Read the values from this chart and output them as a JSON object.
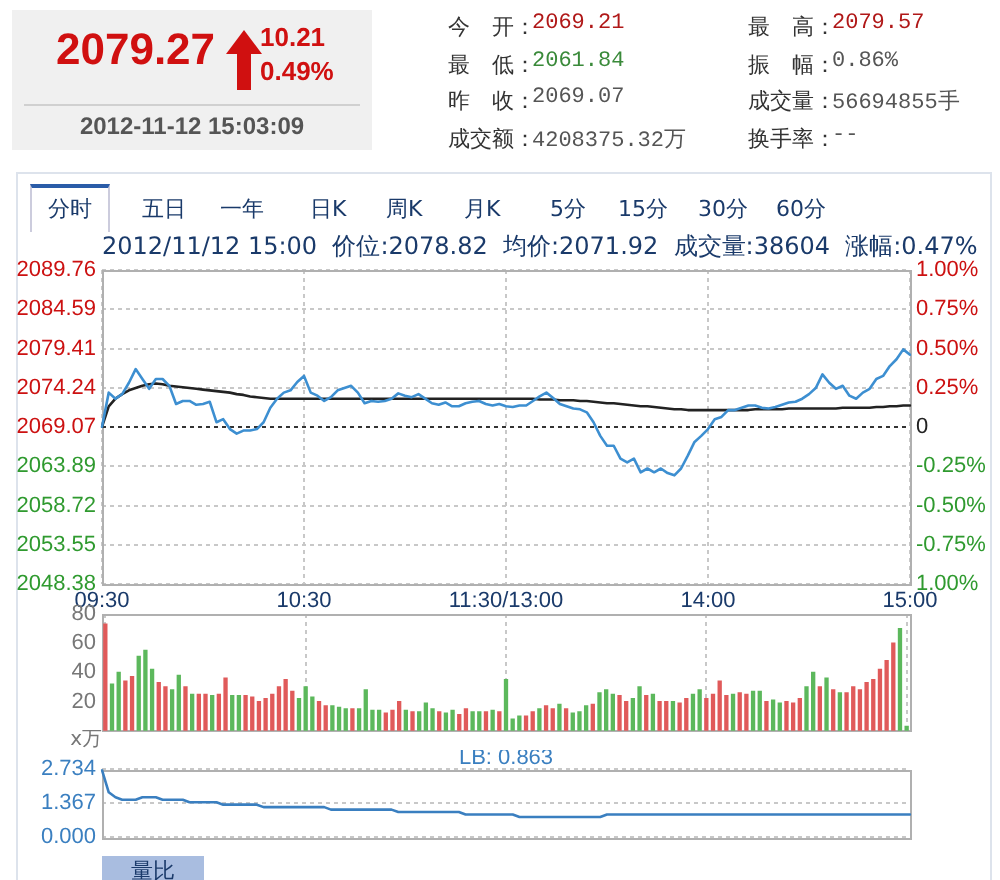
{
  "chart_data": [
    {
      "type": "other",
      "annotations": [
        "2079.27",
        "10.21",
        "0.49%",
        "2012-11-12 15:03:09",
        "今　开：",
        "2069.21",
        "最　高：",
        "2079.57",
        "最　低：",
        "2061.84",
        "振　幅：",
        "0.86%",
        "昨　收：",
        "2069.07",
        "成交量：",
        "56694855手",
        "成交额：",
        "4208375.32万",
        "换手率：",
        "--",
        "分时",
        "五日",
        "一年",
        "日K",
        "周K",
        "月K",
        "5分",
        "15分",
        "30分",
        "60分"
      ]
    },
    {
      "type": "line",
      "title": "2012/11/12 15:00  价位:2078.82  均价:2071.92  成交量:38604  涨幅:0.47%",
      "categories": [
        "09:30",
        null,
        null,
        null,
        null,
        null,
        null,
        null,
        null,
        null,
        null,
        null,
        null,
        null,
        null,
        null,
        null,
        null,
        null,
        null,
        null,
        null,
        null,
        null,
        null,
        null,
        null,
        null,
        null,
        null,
        "10:30",
        null,
        null,
        null,
        null,
        null,
        null,
        null,
        null,
        null,
        null,
        null,
        null,
        null,
        null,
        null,
        null,
        null,
        null,
        null,
        null,
        null,
        null,
        null,
        null,
        null,
        null,
        null,
        null,
        null,
        "11:30/13:00",
        null,
        null,
        null,
        null,
        null,
        null,
        null,
        null,
        null,
        null,
        null,
        null,
        null,
        null,
        null,
        null,
        null,
        null,
        null,
        null,
        null,
        null,
        null,
        null,
        null,
        null,
        null,
        null,
        null,
        "14:00",
        null,
        null,
        null,
        null,
        null,
        null,
        null,
        null,
        null,
        null,
        null,
        null,
        null,
        null,
        null,
        null,
        null,
        null,
        null,
        null,
        null,
        null,
        null,
        null,
        null,
        null,
        null,
        null,
        null,
        "15:00"
      ],
      "ylim": [
        2048.38,
        2089.76
      ],
      "yticks": [
        2048.38,
        2053.55,
        2058.72,
        2063.89,
        2069.07,
        2074.24,
        2079.41,
        2084.59,
        2089.76
      ],
      "y2lim": [
        -1,
        1
      ],
      "y2ticks": [
        {
          "value": -1,
          "label": "1.00%"
        },
        {
          "value": -0.75,
          "label": "-0.75%"
        },
        {
          "value": -0.5,
          "label": "-0.50%"
        },
        {
          "value": -0.25,
          "label": "-0.25%"
        },
        0,
        {
          "value": 0.25,
          "label": "0.25%"
        },
        {
          "value": 0.5,
          "label": "0.50%"
        },
        {
          "value": 0.75,
          "label": "0.75%"
        },
        {
          "value": 1,
          "label": "1.00%"
        }
      ],
      "grid": true,
      "marker": "none",
      "ref_lines": [
        {
          "axis": "y",
          "value": 2069.07,
          "line_style": "dotted",
          "color": "#333333"
        }
      ],
      "series": [
        {
          "color": "#3d8fd1",
          "values": [
            2069.1,
            2073.6,
            2072.8,
            2073.4,
            2074.9,
            2076.7,
            2075.4,
            2074.1,
            2075.4,
            2075.4,
            2074.5,
            2072.1,
            2072.5,
            2072.5,
            2072.0,
            2072.1,
            2072.4,
            2069.7,
            2070.1,
            2068.8,
            2068.2,
            2068.6,
            2068.6,
            2068.8,
            2069.7,
            2071.6,
            2072.8,
            2073.6,
            2073.9,
            2075.0,
            2075.8,
            2073.6,
            2073.2,
            2072.5,
            2073.0,
            2073.9,
            2074.2,
            2074.5,
            2073.6,
            2072.2,
            2072.5,
            2072.4,
            2072.5,
            2072.8,
            2073.5,
            2073.2,
            2073.0,
            2073.4,
            2072.8,
            2072.2,
            2072.0,
            2072.3,
            2071.8,
            2071.8,
            2072.2,
            2072.4,
            2072.5,
            2072.1,
            2071.9,
            2072.1,
            2071.8,
            2071.7,
            2071.9,
            2071.9,
            2072.5,
            2073.1,
            2073.6,
            2072.9,
            2072.1,
            2071.8,
            2071.5,
            2071.4,
            2071.0,
            2069.7,
            2067.9,
            2066.6,
            2066.6,
            2064.9,
            2064.4,
            2064.9,
            2063.1,
            2063.6,
            2063.1,
            2063.6,
            2063.0,
            2062.7,
            2063.6,
            2065.3,
            2067.1,
            2067.9,
            2068.8,
            2070.1,
            2070.4,
            2071.3,
            2071.3,
            2071.6,
            2071.9,
            2071.9,
            2071.6,
            2071.5,
            2071.7,
            2072.0,
            2072.3,
            2072.4,
            2072.8,
            2073.4,
            2074.2,
            2076.0,
            2074.9,
            2074.1,
            2074.5,
            2073.2,
            2072.8,
            2073.6,
            2074.1,
            2075.4,
            2075.8,
            2077.1,
            2078.0,
            2079.3,
            2078.6
          ]
        },
        {
          "color": "#222222",
          "values": [
            2069.1,
            2071.8,
            2072.8,
            2073.4,
            2073.9,
            2074.2,
            2074.5,
            2074.7,
            2074.8,
            2074.7,
            2074.5,
            2074.4,
            2074.3,
            2074.2,
            2074.1,
            2074.0,
            2073.9,
            2073.8,
            2073.7,
            2073.6,
            2073.4,
            2073.3,
            2073.1,
            2073.0,
            2072.9,
            2072.8,
            2072.8,
            2072.8,
            2072.8,
            2072.8,
            2072.8,
            2072.8,
            2072.8,
            2072.8,
            2072.8,
            2072.8,
            2072.8,
            2072.8,
            2072.8,
            2072.8,
            2072.8,
            2072.8,
            2072.8,
            2072.8,
            2072.8,
            2072.8,
            2072.8,
            2072.8,
            2072.8,
            2072.8,
            2072.8,
            2072.8,
            2072.8,
            2072.8,
            2072.8,
            2072.8,
            2072.8,
            2072.8,
            2072.8,
            2072.8,
            2072.8,
            2072.8,
            2072.8,
            2072.8,
            2072.8,
            2072.7,
            2072.7,
            2072.7,
            2072.6,
            2072.6,
            2072.6,
            2072.5,
            2072.5,
            2072.4,
            2072.3,
            2072.2,
            2072.2,
            2072.1,
            2072.0,
            2071.9,
            2071.8,
            2071.8,
            2071.7,
            2071.6,
            2071.5,
            2071.4,
            2071.4,
            2071.3,
            2071.3,
            2071.3,
            2071.3,
            2071.3,
            2071.3,
            2071.3,
            2071.3,
            2071.3,
            2071.3,
            2071.4,
            2071.4,
            2071.4,
            2071.4,
            2071.4,
            2071.5,
            2071.5,
            2071.5,
            2071.5,
            2071.5,
            2071.5,
            2071.5,
            2071.5,
            2071.6,
            2071.6,
            2071.6,
            2071.6,
            2071.6,
            2071.7,
            2071.7,
            2071.8,
            2071.8,
            2071.9,
            2071.9
          ]
        }
      ]
    },
    {
      "type": "bar",
      "ylabel": "x万",
      "categories": [
        null,
        null,
        null,
        null,
        null,
        null,
        null,
        null,
        null,
        null,
        null,
        null,
        null,
        null,
        null,
        null,
        null,
        null,
        null,
        null,
        null,
        null,
        null,
        null,
        null,
        null,
        null,
        null,
        null,
        null,
        null,
        null,
        null,
        null,
        null,
        null,
        null,
        null,
        null,
        null,
        null,
        null,
        null,
        null,
        null,
        null,
        null,
        null,
        null,
        null,
        null,
        null,
        null,
        null,
        null,
        null,
        null,
        null,
        null,
        null,
        null,
        null,
        null,
        null,
        null,
        null,
        null,
        null,
        null,
        null,
        null,
        null,
        null,
        null,
        null,
        null,
        null,
        null,
        null,
        null,
        null,
        null,
        null,
        null,
        null,
        null,
        null,
        null,
        null,
        null,
        null,
        null,
        null,
        null,
        null,
        null,
        null,
        null,
        null,
        null,
        null,
        null,
        null,
        null,
        null,
        null,
        null,
        null,
        null,
        null,
        null,
        null,
        null,
        null,
        null,
        null,
        null,
        null,
        null,
        null,
        null
      ],
      "tick_labels": "y",
      "ylim": [
        0,
        80
      ],
      "yticks": [
        20,
        40,
        60,
        80
      ],
      "grid": "x",
      "values": [
        73,
        32,
        40,
        34,
        37,
        51,
        55,
        42,
        33,
        30,
        28,
        38,
        30,
        25,
        25,
        25,
        24,
        25,
        36,
        24,
        24,
        24,
        23,
        20,
        22,
        25,
        30,
        35,
        27,
        22,
        30,
        23,
        20,
        17,
        17,
        16,
        15,
        15,
        15,
        28,
        14,
        14,
        12,
        14,
        20,
        14,
        13,
        13,
        19,
        15,
        13,
        12,
        14,
        11,
        15,
        13,
        13,
        13,
        14,
        13,
        35,
        8,
        10,
        10,
        13,
        15,
        17,
        15,
        18,
        15,
        12,
        13,
        17,
        18,
        26,
        28,
        25,
        24,
        20,
        22,
        30,
        24,
        25,
        20,
        20,
        20,
        19,
        22,
        25,
        28,
        22,
        25,
        34,
        24,
        25,
        26,
        25,
        27,
        27,
        20,
        21,
        19,
        20,
        19,
        22,
        30,
        40,
        30,
        36,
        28,
        26,
        26,
        30,
        28,
        33,
        35,
        42,
        48,
        60,
        70,
        3
      ],
      "colors": [
        "#e05a5a",
        "#5cb85c",
        "#5cb85c",
        "#e05a5a",
        "#e05a5a",
        "#5cb85c",
        "#5cb85c",
        "#5cb85c",
        "#e05a5a",
        "#e05a5a",
        "#5cb85c",
        "#5cb85c",
        "#e05a5a",
        "#5cb85c",
        "#e05a5a",
        "#e05a5a",
        "#5cb85c",
        "#e05a5a",
        "#e05a5a",
        "#5cb85c",
        "#5cb85c",
        "#e05a5a",
        "#e05a5a",
        "#e05a5a",
        "#e05a5a",
        "#e05a5a",
        "#e05a5a",
        "#e05a5a",
        "#e05a5a",
        "#5cb85c",
        "#5cb85c",
        "#5cb85c",
        "#e05a5a",
        "#e05a5a",
        "#5cb85c",
        "#5cb85c",
        "#5cb85c",
        "#e05a5a",
        "#5cb85c",
        "#5cb85c",
        "#5cb85c",
        "#5cb85c",
        "#e05a5a",
        "#e05a5a",
        "#e05a5a",
        "#5cb85c",
        "#e05a5a",
        "#5cb85c",
        "#5cb85c",
        "#5cb85c",
        "#e05a5a",
        "#5cb85c",
        "#5cb85c",
        "#e05a5a",
        "#e05a5a",
        "#5cb85c",
        "#5cb85c",
        "#e05a5a",
        "#5cb85c",
        "#e05a5a",
        "#5cb85c",
        "#5cb85c",
        "#5cb85c",
        "#e05a5a",
        "#e05a5a",
        "#5cb85c",
        "#e05a5a",
        "#e05a5a",
        "#5cb85c",
        "#e05a5a",
        "#5cb85c",
        "#5cb85c",
        "#5cb85c",
        "#e05a5a",
        "#5cb85c",
        "#5cb85c",
        "#5cb85c",
        "#e05a5a",
        "#e05a5a",
        "#5cb85c",
        "#5cb85c",
        "#e05a5a",
        "#5cb85c",
        "#e05a5a",
        "#e05a5a",
        "#5cb85c",
        "#e05a5a",
        "#e05a5a",
        "#5cb85c",
        "#5cb85c",
        "#e05a5a",
        "#e05a5a",
        "#e05a5a",
        "#e05a5a",
        "#5cb85c",
        "#e05a5a",
        "#e05a5a",
        "#5cb85c",
        "#5cb85c",
        "#e05a5a",
        "#5cb85c",
        "#5cb85c",
        "#e05a5a",
        "#e05a5a",
        "#e05a5a",
        "#5cb85c",
        "#5cb85c",
        "#e05a5a",
        "#5cb85c",
        "#e05a5a",
        "#5cb85c",
        "#e05a5a",
        "#e05a5a",
        "#e05a5a",
        "#e05a5a",
        "#e05a5a",
        "#e05a5a",
        "#e05a5a",
        "#e05a5a",
        "#5cb85c",
        "#5cb85c"
      ]
    },
    {
      "type": "line",
      "title": "LB: 0.863",
      "categories": [
        null,
        null,
        null,
        null,
        null,
        null,
        null,
        null,
        null,
        null,
        null,
        null,
        null,
        null,
        null,
        null,
        null,
        null,
        null,
        null,
        null,
        null,
        null,
        null,
        null,
        null,
        null,
        null,
        null,
        null,
        null,
        null,
        null,
        null,
        null,
        null,
        null,
        null,
        null,
        null,
        null,
        null,
        null,
        null,
        null,
        null,
        null,
        null,
        null,
        null,
        null,
        null,
        null,
        null,
        null,
        null,
        null,
        null,
        null,
        null,
        null,
        null,
        null,
        null,
        null,
        null,
        null,
        null,
        null,
        null,
        null,
        null,
        null,
        null,
        null,
        null,
        null,
        null,
        null,
        null,
        null,
        null,
        null,
        null,
        null,
        null,
        null,
        null,
        null,
        null,
        null,
        null,
        null,
        null,
        null,
        null,
        null,
        null,
        null,
        null,
        null,
        null,
        null,
        null,
        null,
        null,
        null,
        null,
        null,
        null,
        null,
        null,
        null,
        null,
        null,
        null,
        null,
        null,
        null,
        null,
        null
      ],
      "tick_labels": "y",
      "ylim": [
        0,
        2.734
      ],
      "yticks": [
        {
          "value": 0,
          "label": "0.000"
        },
        1.367,
        2.734
      ],
      "grid": "y",
      "marker": "none",
      "annotations": [
        "量比"
      ],
      "series": [
        {
          "color": "#3a7fc0",
          "values": [
            2.7,
            1.8,
            1.6,
            1.5,
            1.5,
            1.5,
            1.6,
            1.6,
            1.6,
            1.5,
            1.5,
            1.5,
            1.5,
            1.4,
            1.4,
            1.4,
            1.4,
            1.4,
            1.3,
            1.3,
            1.3,
            1.3,
            1.3,
            1.3,
            1.2,
            1.2,
            1.2,
            1.2,
            1.2,
            1.2,
            1.2,
            1.2,
            1.2,
            1.2,
            1.1,
            1.1,
            1.1,
            1.1,
            1.1,
            1.1,
            1.1,
            1.1,
            1.1,
            1.1,
            1.0,
            1.0,
            1.0,
            1.0,
            1.0,
            1.0,
            1.0,
            1.0,
            1.0,
            1.0,
            0.9,
            0.9,
            0.9,
            0.9,
            0.9,
            0.9,
            0.9,
            0.9,
            0.8,
            0.8,
            0.8,
            0.8,
            0.8,
            0.8,
            0.8,
            0.8,
            0.8,
            0.8,
            0.8,
            0.8,
            0.8,
            0.9,
            0.9,
            0.9,
            0.9,
            0.9,
            0.9,
            0.9,
            0.9,
            0.9,
            0.9,
            0.9,
            0.9,
            0.9,
            0.9,
            0.9,
            0.9,
            0.9,
            0.9,
            0.9,
            0.9,
            0.9,
            0.9,
            0.9,
            0.9,
            0.9,
            0.9,
            0.9,
            0.9,
            0.9,
            0.9,
            0.9,
            0.9,
            0.9,
            0.9,
            0.9,
            0.9,
            0.9,
            0.9,
            0.9,
            0.9,
            0.9,
            0.9,
            0.9,
            0.9,
            0.9,
            0.9
          ]
        }
      ]
    }
  ]
}
